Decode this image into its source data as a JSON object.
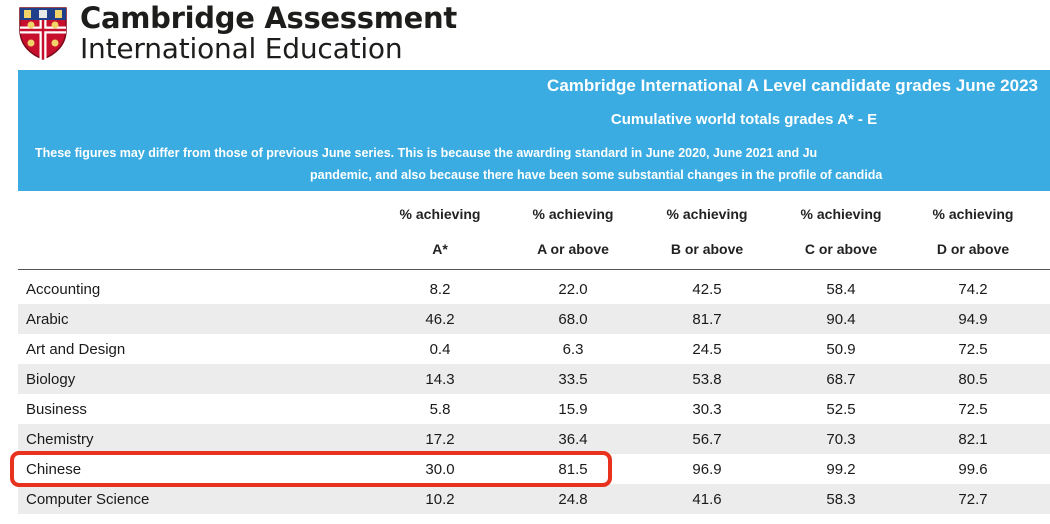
{
  "header": {
    "brand_line1": "Cambridge Assessment",
    "brand_line2": "International Education"
  },
  "banner": {
    "title": "Cambridge International A Level candidate grades June 2023",
    "subtitle": "Cumulative world totals grades A* - E",
    "note_line1": "These figures may differ from those of previous June series. This is because the awarding standard in June 2020, June 2021 and Ju",
    "note_line2": "pandemic, and also because there have been some substantial changes in the profile of candida"
  },
  "table": {
    "columns": [
      {
        "line1": "% achieving",
        "line2": "A*"
      },
      {
        "line1": "% achieving",
        "line2": "A or above"
      },
      {
        "line1": "% achieving",
        "line2": "B or above"
      },
      {
        "line1": "% achieving",
        "line2": "C or above"
      },
      {
        "line1": "% achieving",
        "line2": "D or above"
      }
    ],
    "rows": [
      {
        "subject": "Accounting",
        "values": [
          "8.2",
          "22.0",
          "42.5",
          "58.4",
          "74.2"
        ]
      },
      {
        "subject": "Arabic",
        "values": [
          "46.2",
          "68.0",
          "81.7",
          "90.4",
          "94.9"
        ]
      },
      {
        "subject": "Art and Design",
        "values": [
          "0.4",
          "6.3",
          "24.5",
          "50.9",
          "72.5"
        ]
      },
      {
        "subject": "Biology",
        "values": [
          "14.3",
          "33.5",
          "53.8",
          "68.7",
          "80.5"
        ]
      },
      {
        "subject": "Business",
        "values": [
          "5.8",
          "15.9",
          "30.3",
          "52.5",
          "72.5"
        ]
      },
      {
        "subject": "Chemistry",
        "values": [
          "17.2",
          "36.4",
          "56.7",
          "70.3",
          "82.1"
        ]
      },
      {
        "subject": "Chinese",
        "values": [
          "30.0",
          "81.5",
          "96.9",
          "99.2",
          "99.6"
        ]
      },
      {
        "subject": "Computer Science",
        "values": [
          "10.2",
          "24.8",
          "41.6",
          "58.3",
          "72.7"
        ]
      }
    ]
  },
  "colors": {
    "banner": "#3aace2",
    "highlight": "#e8321e",
    "row_alt": "#ececec"
  },
  "highlighted_subject": "Chinese"
}
